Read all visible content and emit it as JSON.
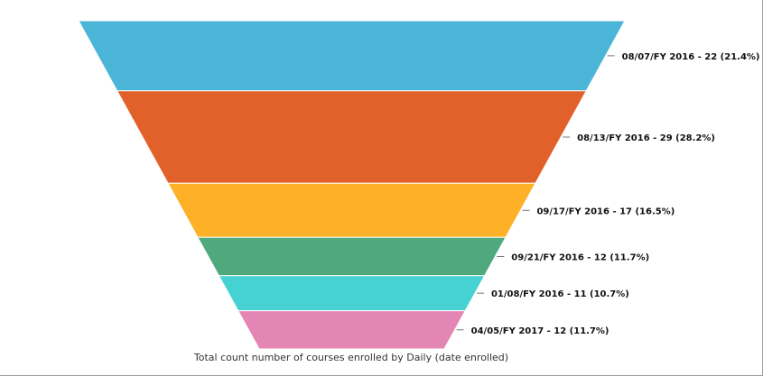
{
  "chart_data": {
    "type": "funnel",
    "title": "",
    "caption": "Total count number of courses enrolled by Daily (date enrolled)",
    "stages": [
      {
        "label": "08/07/FY 2016 - 22 (21.4%)",
        "category": "08/07/FY 2016",
        "value": 22,
        "percent": 21.4,
        "color": "#4bb5d8"
      },
      {
        "label": "08/13/FY 2016 - 29 (28.2%)",
        "category": "08/13/FY 2016",
        "value": 29,
        "percent": 28.2,
        "color": "#e2602a"
      },
      {
        "label": "09/17/FY 2016 - 17 (16.5%)",
        "category": "09/17/FY 2016",
        "value": 17,
        "percent": 16.5,
        "color": "#feb026"
      },
      {
        "label": "09/21/FY 2016 - 12 (11.7%)",
        "category": "09/21/FY 2016",
        "value": 12,
        "percent": 11.7,
        "color": "#4fa97c"
      },
      {
        "label": "01/08/FY 2016 - 11 (10.7%)",
        "category": "01/08/FY 2016",
        "value": 11,
        "percent": 10.7,
        "color": "#46d2d2"
      },
      {
        "label": "04/05/FY 2017 - 12 (11.7%)",
        "category": "04/05/FY 2017",
        "value": 12,
        "percent": 11.7,
        "color": "#e486b4"
      }
    ]
  }
}
